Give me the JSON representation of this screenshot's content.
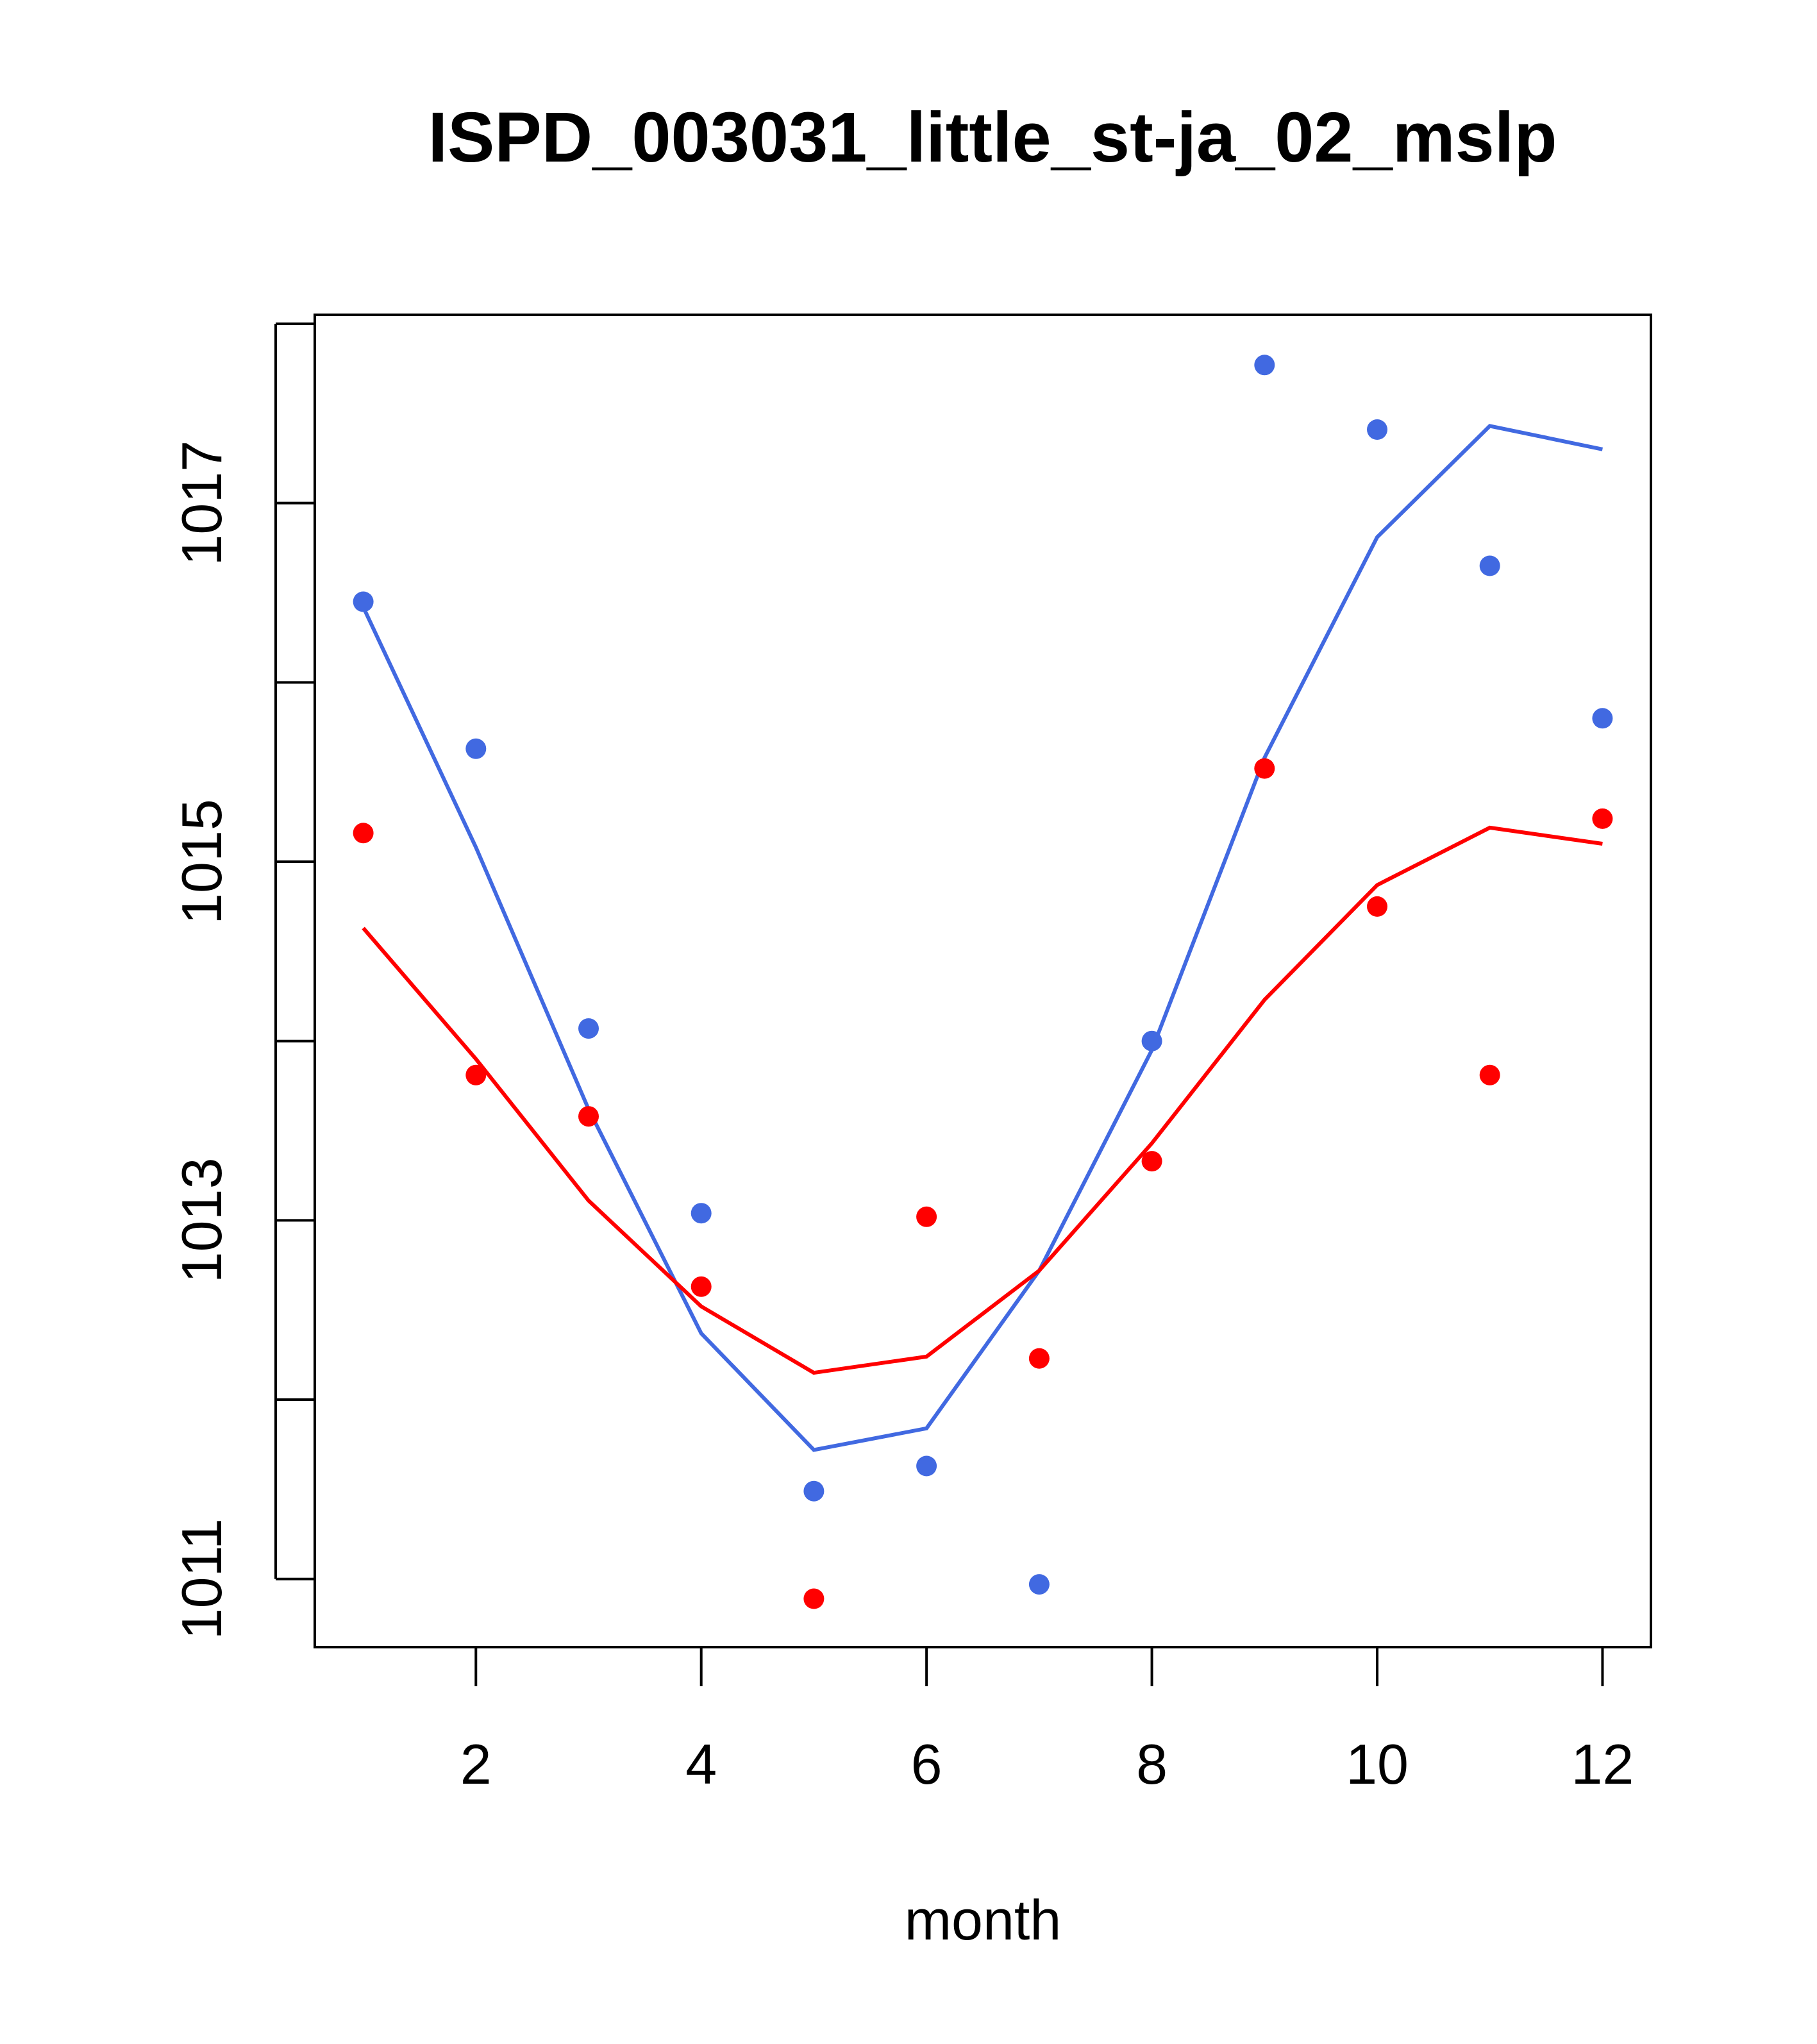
{
  "chart_data": {
    "type": "line",
    "title": "ISPD_003031_little_st-ja_02_mslp",
    "xlabel": "month",
    "ylabel": "",
    "xlim": [
      0.57,
      12.43
    ],
    "ylim": [
      1010.62,
      1018.05
    ],
    "x_ticks": [
      2,
      4,
      6,
      8,
      10,
      12
    ],
    "x_tick_labels": [
      "2",
      "4",
      "6",
      "8",
      "10",
      "12"
    ],
    "y_ticks": [
      1011,
      1012,
      1013,
      1014,
      1015,
      1016,
      1017,
      1018
    ],
    "y_tick_labels": [
      {
        "value": 1011,
        "label": "1011"
      },
      {
        "value": 1013,
        "label": "1013"
      },
      {
        "value": 1015,
        "label": "1015"
      },
      {
        "value": 1017,
        "label": "1017"
      }
    ],
    "grid": false,
    "legend": "none",
    "series": [
      {
        "name": "blue",
        "color": "#4169E1",
        "x": [
          1,
          2,
          3,
          4,
          5,
          6,
          7,
          8,
          9,
          10,
          11,
          12
        ],
        "points": [
          1016.45,
          1015.63,
          1014.07,
          1013.04,
          1011.49,
          1011.63,
          1010.97,
          1014.0,
          1017.77,
          1017.41,
          1016.65,
          1015.8
        ],
        "line": [
          1016.42,
          1015.08,
          1013.62,
          1012.37,
          1011.72,
          1011.84,
          1012.72,
          1013.95,
          1015.58,
          1016.81,
          1017.43,
          1017.3
        ]
      },
      {
        "name": "red",
        "color": "#FF0000",
        "x": [
          1,
          2,
          3,
          4,
          5,
          6,
          7,
          8,
          9,
          10,
          11,
          12
        ],
        "points": [
          1015.16,
          1013.81,
          1013.58,
          1012.63,
          1010.89,
          1013.02,
          1012.23,
          1013.33,
          1015.52,
          1014.75,
          1013.81,
          1015.24
        ],
        "line": [
          1014.63,
          1013.9,
          1013.11,
          1012.52,
          1012.15,
          1012.24,
          1012.72,
          1013.43,
          1014.23,
          1014.87,
          1015.19,
          1015.1
        ]
      }
    ]
  }
}
